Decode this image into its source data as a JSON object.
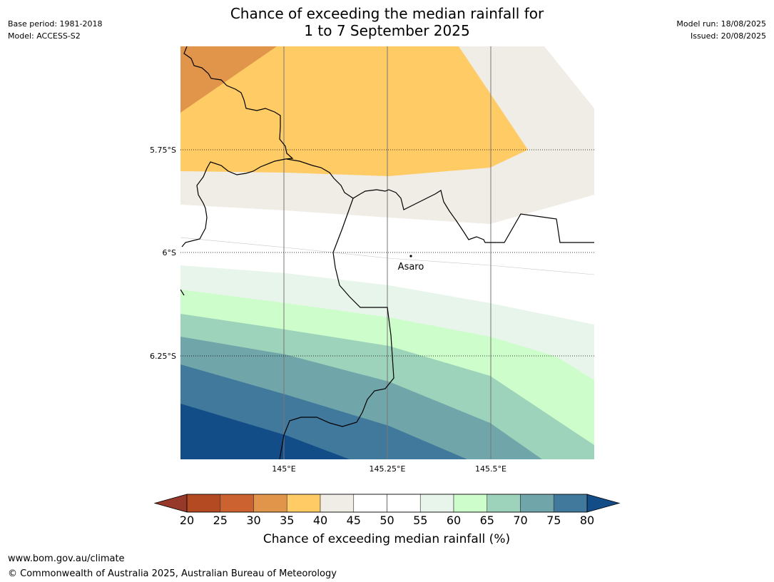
{
  "header": {
    "title_line1": "Chance of exceeding the median rainfall for",
    "title_line2": "1 to 7 September 2025",
    "base_period": "Base period: 1981-2018",
    "model": "Model: ACCESS-S2",
    "model_run": "Model run: 18/08/2025",
    "issued": "Issued: 20/08/2025"
  },
  "map": {
    "lat_labels": [
      "5.75°S",
      "6°S",
      "6.25°S"
    ],
    "lon_labels": [
      "145°E",
      "145.25°E",
      "145.5°E"
    ],
    "place_label": "Asaro",
    "grid_lines": "on"
  },
  "colorbar": {
    "label": "Chance of exceeding median rainfall (%)",
    "ticks": [
      "20",
      "25",
      "30",
      "35",
      "40",
      "45",
      "50",
      "55",
      "60",
      "65",
      "70",
      "75",
      "80"
    ],
    "colors": [
      "#b34a22",
      "#cc6230",
      "#e0954a",
      "#fecb65",
      "#f0ece6",
      "#ffffff",
      "#ffffff",
      "#e8f5ea",
      "#ccfdca",
      "#9dd2bb",
      "#70a5a9",
      "#40799c"
    ],
    "under_color": "#96392a",
    "over_color": "#134d87"
  },
  "footer": {
    "url": "www.bom.gov.au/climate",
    "copyright": "© Commonwealth of Australia 2025, Australian Bureau of Meteorology"
  }
}
